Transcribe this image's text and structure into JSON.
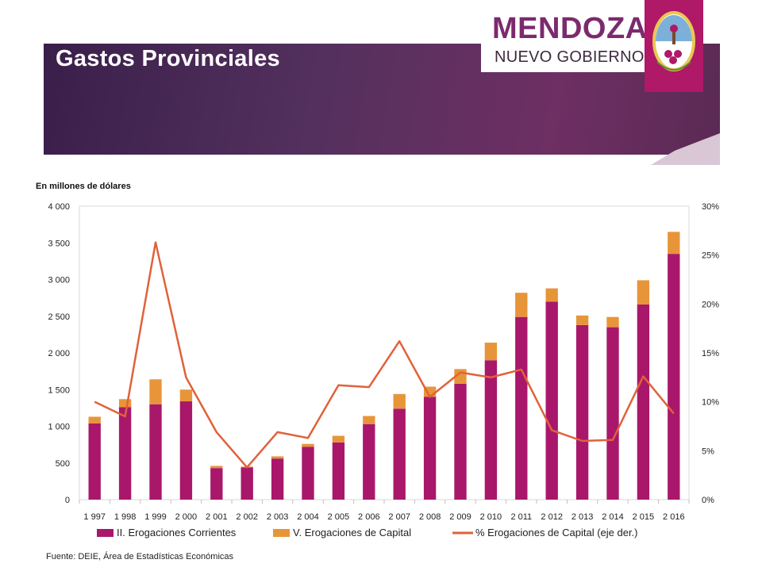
{
  "header": {
    "title": "Gastos Provinciales",
    "logo_name": "MENDOZA",
    "logo_sub": "NUEVO GOBIERNO"
  },
  "colors": {
    "corrientes": "#a9176b",
    "capital": "#e8953a",
    "pct_line": "#e0623a"
  },
  "unit_label": "En millones de dólares",
  "source": "Fuente: DEIE, Área de Estadísticas Económicas",
  "chart_data": {
    "type": "bar",
    "stacked": true,
    "categories": [
      "1 997",
      "1 998",
      "1 999",
      "2 000",
      "2 001",
      "2 002",
      "2 003",
      "2 004",
      "2 005",
      "2 006",
      "2 007",
      "2 008",
      "2 009",
      "2 010",
      "2 011",
      "2 012",
      "2 013",
      "2 014",
      "2 015",
      "2 016"
    ],
    "series": [
      {
        "name": "II. Erogaciones Corrientes",
        "values": [
          1040,
          1260,
          1300,
          1340,
          430,
          440,
          560,
          720,
          780,
          1030,
          1240,
          1400,
          1580,
          1900,
          2490,
          2700,
          2380,
          2350,
          2660,
          3350
        ]
      },
      {
        "name": "V. Erogaciones de Capital",
        "values": [
          90,
          110,
          340,
          160,
          30,
          10,
          30,
          40,
          90,
          110,
          200,
          140,
          200,
          240,
          330,
          180,
          130,
          140,
          330,
          300
        ]
      }
    ],
    "line_series": {
      "name": "% Erogaciones de Capital (eje der.)",
      "axis": "right",
      "values": [
        10.0,
        8.5,
        26.3,
        12.5,
        6.9,
        3.3,
        6.9,
        6.3,
        11.7,
        11.5,
        16.2,
        10.5,
        13.0,
        12.5,
        13.3,
        7.1,
        6.0,
        6.1,
        12.6,
        8.8
      ]
    },
    "ylim": [
      0,
      4000
    ],
    "yticks": [
      "0",
      "500",
      "1 000",
      "1 500",
      "2 000",
      "2 500",
      "3 000",
      "3 500",
      "4 000"
    ],
    "y2lim": [
      0,
      30
    ],
    "y2ticks": [
      "0%",
      "5%",
      "10%",
      "15%",
      "20%",
      "25%",
      "30%"
    ],
    "legend_position": "bottom"
  }
}
